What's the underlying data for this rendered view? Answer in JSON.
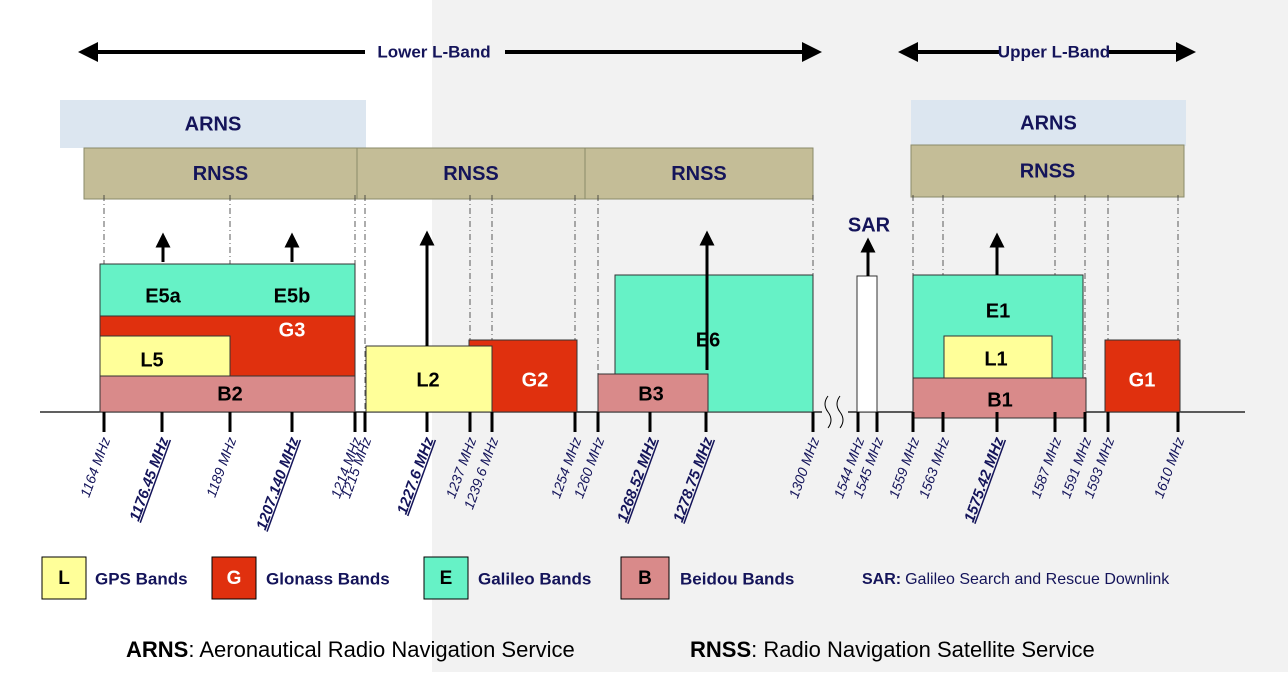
{
  "header": {
    "lower": "Lower L-Band",
    "upper": "Upper L-Band"
  },
  "services": [
    {
      "label": "ARNS"
    },
    {
      "label": "ARNS"
    },
    {
      "label": "RNSS"
    },
    {
      "label": "RNSS"
    },
    {
      "label": "RNSS"
    },
    {
      "label": "RNSS"
    }
  ],
  "blocks": [
    {
      "label": "E5a"
    },
    {
      "label": "E5b"
    },
    {
      "label": "G3"
    },
    {
      "label": "L5"
    },
    {
      "label": "B2"
    },
    {
      "label": "G2"
    },
    {
      "label": "L2"
    },
    {
      "label": "E6"
    },
    {
      "label": "B3"
    },
    {
      "label": "SAR"
    },
    {
      "label": "E1"
    },
    {
      "label": "L1"
    },
    {
      "label": "B1"
    },
    {
      "label": "G1"
    }
  ],
  "frequencies": [
    {
      "label": "1164 MHz"
    },
    {
      "label": "1176.45 MHz",
      "emphasis": true
    },
    {
      "label": "1189 MHz"
    },
    {
      "label": "1207.140 MHz",
      "emphasis": true
    },
    {
      "label": "1214 MHz"
    },
    {
      "label": "1215 MHz"
    },
    {
      "label": "1227.6 MHz",
      "emphasis": true
    },
    {
      "label": "1237 MHz"
    },
    {
      "label": "1239.6  MHz"
    },
    {
      "label": "1254 MHz"
    },
    {
      "label": "1260 MHz"
    },
    {
      "label": "1268.52 MHz",
      "emphasis": true
    },
    {
      "label": "1278.75 MHz",
      "emphasis": true
    },
    {
      "label": "1300 MHz"
    },
    {
      "label": "1544 MHz"
    },
    {
      "label": "1545 MHz"
    },
    {
      "label": "1559 MHz"
    },
    {
      "label": "1563 MHz"
    },
    {
      "label": "1575.42 MHz",
      "emphasis": true
    },
    {
      "label": "1587 MHz"
    },
    {
      "label": "1591 MHz"
    },
    {
      "label": "1593 MHz"
    },
    {
      "label": "1610 MHz"
    }
  ],
  "legend": [
    {
      "key": "L",
      "label": "GPS Bands"
    },
    {
      "key": "G",
      "label": "Glonass Bands"
    },
    {
      "key": "E",
      "label": "Galileo Bands"
    },
    {
      "key": "B",
      "label": "Beidou Bands"
    }
  ],
  "sar_note": {
    "key": "SAR:",
    "text": "Galileo Search and Rescue Downlink"
  },
  "footer": [
    {
      "key": "ARNS",
      "text": ": Aeronautical Radio Navigation Service"
    },
    {
      "key": "RNSS",
      "text": ": Radio Navigation Satellite Service"
    }
  ]
}
